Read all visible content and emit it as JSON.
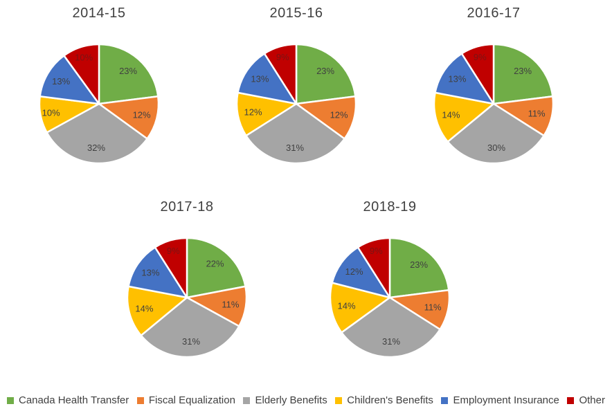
{
  "chart_style": {
    "background": "#ffffff",
    "title_color": "#404040",
    "label_color": "#404040",
    "label_color_on_other_slice": "#7a1414",
    "slice_border_color": "#ffffff",
    "legend_text_color": "#404040"
  },
  "legend": {
    "position": "bottom",
    "items": [
      {
        "label": "Canada Health Transfer",
        "color": "#70AD47"
      },
      {
        "label": "Fiscal Equalization",
        "color": "#ED7D31"
      },
      {
        "label": "Elderly Benefits",
        "color": "#A5A5A5"
      },
      {
        "label": "Children's Benefits",
        "color": "#FFC000"
      },
      {
        "label": "Employment Insurance",
        "color": "#4472C4"
      },
      {
        "label": "Other",
        "color": "#C00000"
      }
    ]
  },
  "chart_data": [
    {
      "type": "pie",
      "title": "2014-15",
      "categories": [
        "Canada Health Transfer",
        "Fiscal Equalization",
        "Elderly Benefits",
        "Children's Benefits",
        "Employment Insurance",
        "Other"
      ],
      "values": [
        23,
        12,
        32,
        10,
        13,
        10
      ],
      "labels": [
        "23%",
        "12%",
        "32%",
        "10%",
        "13%",
        "10%"
      ],
      "colors": [
        "#70AD47",
        "#ED7D31",
        "#A5A5A5",
        "#FFC000",
        "#4472C4",
        "#C00000"
      ],
      "start_angle_deg": 0,
      "direction": "clockwise"
    },
    {
      "type": "pie",
      "title": "2015-16",
      "categories": [
        "Canada Health Transfer",
        "Fiscal Equalization",
        "Elderly Benefits",
        "Children's Benefits",
        "Employment Insurance",
        "Other"
      ],
      "values": [
        23,
        12,
        31,
        12,
        13,
        9
      ],
      "labels": [
        "23%",
        "12%",
        "31%",
        "12%",
        "13%",
        "9%"
      ],
      "colors": [
        "#70AD47",
        "#ED7D31",
        "#A5A5A5",
        "#FFC000",
        "#4472C4",
        "#C00000"
      ],
      "start_angle_deg": 0,
      "direction": "clockwise"
    },
    {
      "type": "pie",
      "title": "2016-17",
      "categories": [
        "Canada Health Transfer",
        "Fiscal Equalization",
        "Elderly Benefits",
        "Children's Benefits",
        "Employment Insurance",
        "Other"
      ],
      "values": [
        23,
        11,
        30,
        14,
        13,
        9
      ],
      "labels": [
        "23%",
        "11%",
        "30%",
        "14%",
        "13%",
        "9%"
      ],
      "colors": [
        "#70AD47",
        "#ED7D31",
        "#A5A5A5",
        "#FFC000",
        "#4472C4",
        "#C00000"
      ],
      "start_angle_deg": 0,
      "direction": "clockwise"
    },
    {
      "type": "pie",
      "title": "2017-18",
      "categories": [
        "Canada Health Transfer",
        "Fiscal Equalization",
        "Elderly Benefits",
        "Children's Benefits",
        "Employment Insurance",
        "Other"
      ],
      "values": [
        22,
        11,
        31,
        14,
        13,
        9
      ],
      "labels": [
        "22%",
        "11%",
        "31%",
        "14%",
        "13%",
        "9%"
      ],
      "colors": [
        "#70AD47",
        "#ED7D31",
        "#A5A5A5",
        "#FFC000",
        "#4472C4",
        "#C00000"
      ],
      "start_angle_deg": 0,
      "direction": "clockwise"
    },
    {
      "type": "pie",
      "title": "2018-19",
      "categories": [
        "Canada Health Transfer",
        "Fiscal Equalization",
        "Elderly Benefits",
        "Children's Benefits",
        "Employment Insurance",
        "Other"
      ],
      "values": [
        23,
        11,
        31,
        14,
        12,
        9
      ],
      "labels": [
        "23%",
        "11%",
        "31%",
        "14%",
        "12%",
        "9%"
      ],
      "colors": [
        "#70AD47",
        "#ED7D31",
        "#A5A5A5",
        "#FFC000",
        "#4472C4",
        "#C00000"
      ],
      "start_angle_deg": 0,
      "direction": "clockwise"
    }
  ]
}
